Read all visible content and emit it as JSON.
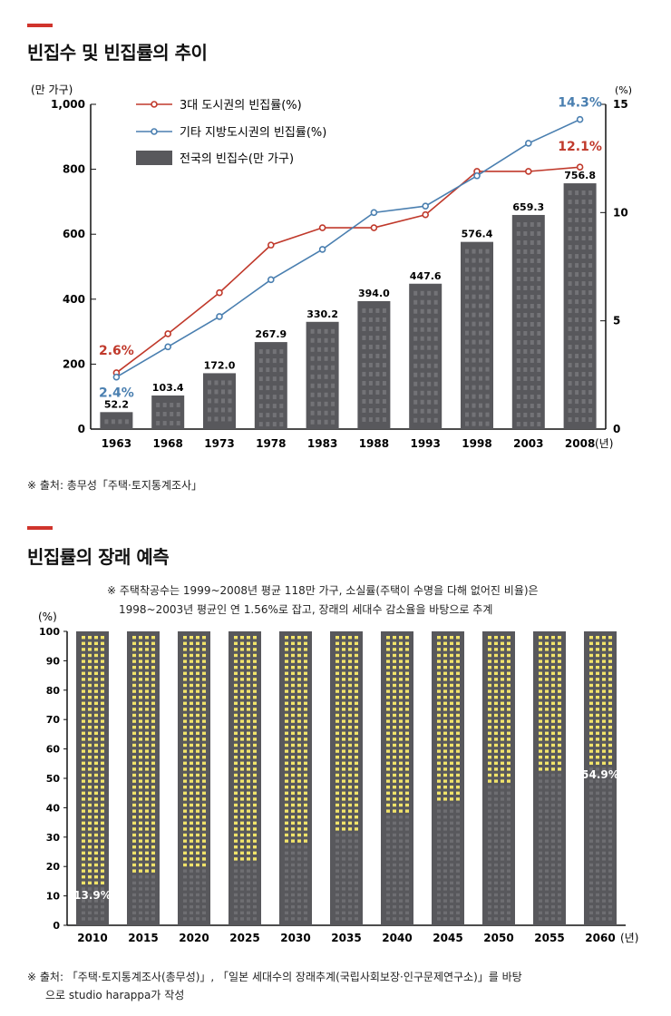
{
  "colors": {
    "accent": "#d0342c",
    "bar": "#58585c",
    "window": "#8a8a8e",
    "window_lit": "#f2e46a",
    "series_red": "#c0392b",
    "series_blue": "#4a7fb0"
  },
  "sections": {
    "trend_title": "빈집수 및 빈집률의 추이",
    "trend_source": "※ 출처: 총무성「주택·토지통계조사」",
    "forecast_title": "빈집률의 장래 예측",
    "forecast_note_line1": "※ 주택착공수는 1999~2008년 평균 118만 가구, 소실률(주택이 수명을 다해 없어진 비율)은",
    "forecast_note_line2": "1998~2003년 평균인 연 1.56%로 잡고, 장래의 세대수 감소율을 바탕으로 추계",
    "forecast_source_line1": "※ 출처: 「주택·토지통계조사(총무성)」, 「일본 세대수의 장래추계(국립사회보장·인구문제연구소)」를 바탕",
    "forecast_source_line2": "으로 studio harappa가 작성"
  },
  "chart_data": [
    {
      "type": "bar",
      "title": "빈집수 및 빈집률의 추이",
      "categories": [
        "1963",
        "1968",
        "1973",
        "1978",
        "1983",
        "1988",
        "1993",
        "1998",
        "2003",
        "2008"
      ],
      "x_unit": "(년)",
      "series": [
        {
          "name": "전국의 빈집수(만 가구)",
          "type": "bar",
          "axis": "left",
          "values": [
            52.2,
            103.4,
            172.0,
            267.9,
            330.2,
            394.0,
            447.6,
            576.4,
            659.3,
            756.8
          ],
          "labels": [
            "52.2",
            "103.4",
            "172.0",
            "267.9",
            "330.2",
            "394.0",
            "447.6",
            "576.4",
            "659.3",
            "756.8"
          ]
        },
        {
          "name": "3대 도시권의 빈집률(%)",
          "type": "line",
          "axis": "right",
          "values": [
            2.6,
            4.4,
            6.3,
            8.5,
            9.3,
            9.3,
            9.9,
            11.9,
            11.9,
            12.1
          ]
        },
        {
          "name": "기타 지방도시권의 빈집률(%)",
          "type": "line",
          "axis": "right",
          "values": [
            2.4,
            3.8,
            5.2,
            6.9,
            8.3,
            10.0,
            10.3,
            11.7,
            13.2,
            14.3
          ]
        }
      ],
      "annotations": [
        {
          "series": 1,
          "index": 0,
          "text": "2.6%"
        },
        {
          "series": 2,
          "index": 0,
          "text": "2.4%"
        },
        {
          "series": 1,
          "index": 9,
          "text": "12.1%"
        },
        {
          "series": 2,
          "index": 9,
          "text": "14.3%"
        }
      ],
      "left_axis": {
        "label": "(만 가구)",
        "ylim": [
          0,
          1000
        ],
        "ticks": [
          "0",
          "200",
          "400",
          "600",
          "800",
          "1,000"
        ]
      },
      "right_axis": {
        "label": "(%)",
        "ylim": [
          0,
          15
        ],
        "ticks": [
          "0",
          "5",
          "10",
          "15"
        ]
      },
      "legend_position": "top-left"
    },
    {
      "type": "bar",
      "title": "빈집률의 장래 예측",
      "categories": [
        "2010",
        "2015",
        "2020",
        "2025",
        "2030",
        "2035",
        "2040",
        "2045",
        "2050",
        "2055",
        "2060"
      ],
      "x_unit": "(년)",
      "ylabel": "(%)",
      "ylim": [
        0,
        100
      ],
      "ticks": [
        "0",
        "10",
        "20",
        "30",
        "40",
        "50",
        "60",
        "70",
        "80",
        "90",
        "100"
      ],
      "series": [
        {
          "name": "빈집률",
          "values": [
            13.9,
            17,
            20,
            23,
            28,
            33,
            38,
            43,
            49,
            52,
            54.9
          ]
        }
      ],
      "labels": {
        "0": "13.9%",
        "10": "54.9%"
      }
    }
  ]
}
